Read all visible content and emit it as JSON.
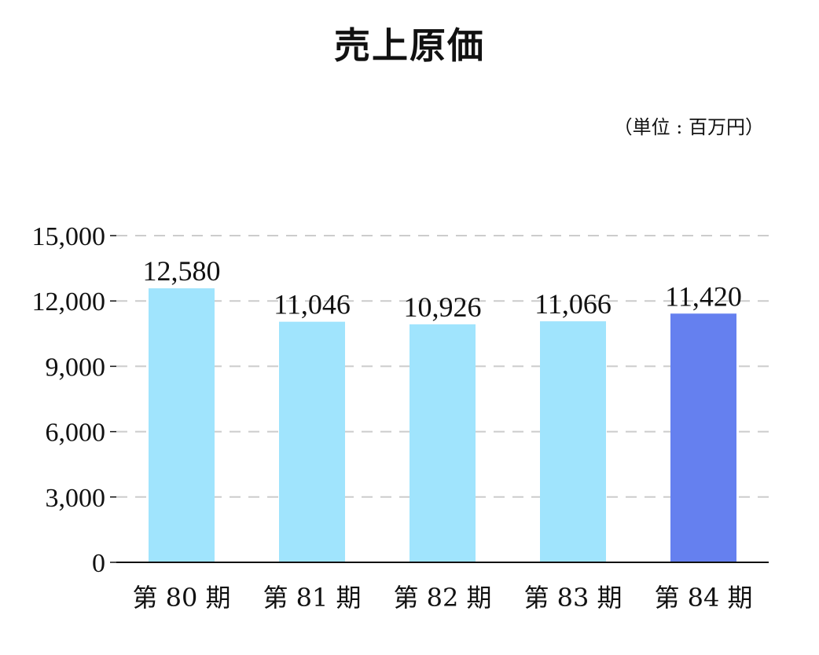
{
  "title": "売上原価",
  "unit": "（単位 : 百万円）",
  "chart_data": {
    "type": "bar",
    "title": "売上原価",
    "categories": [
      "第 80 期",
      "第 81 期",
      "第 82 期",
      "第 83 期",
      "第 84 期"
    ],
    "values": [
      12580,
      11046,
      10926,
      11066,
      11420
    ],
    "value_labels": [
      "12,580",
      "11,046",
      "10,926",
      "11,066",
      "11,420"
    ],
    "ylim": [
      0,
      15000
    ],
    "yticks": [
      0,
      3000,
      6000,
      9000,
      12000,
      15000
    ],
    "ytick_labels": [
      "0",
      "3,000",
      "6,000",
      "9,000",
      "12,000",
      "15,000"
    ],
    "grid": true,
    "colors": {
      "default_bar": "#a0e4fd",
      "highlight_bar": "#6580ef",
      "grid": "#cccccc",
      "axis": "#111111"
    },
    "highlight_index": 4
  }
}
